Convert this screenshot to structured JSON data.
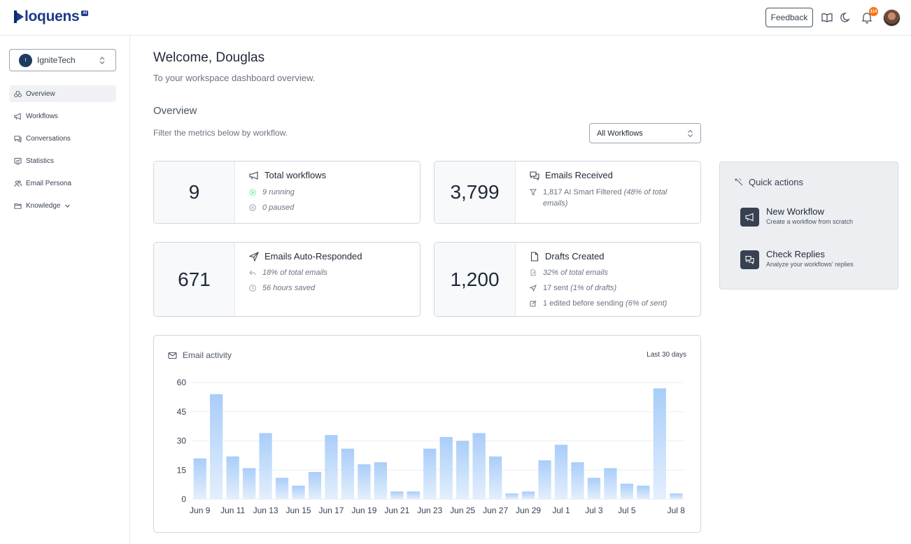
{
  "header": {
    "brand": "loquens",
    "brand_badge": "AI",
    "feedback_label": "Feedback",
    "notification_count": "114"
  },
  "sidebar": {
    "workspace": {
      "initial": "I",
      "name": "IgniteTech"
    },
    "items": [
      {
        "label": "Overview",
        "icon": "binoculars-icon",
        "active": true
      },
      {
        "label": "Workflows",
        "icon": "megaphone-icon"
      },
      {
        "label": "Conversations",
        "icon": "chat-icon"
      },
      {
        "label": "Statistics",
        "icon": "chart-icon"
      },
      {
        "label": "Email Persona",
        "icon": "users-icon"
      },
      {
        "label": "Knowledge",
        "icon": "folder-icon"
      }
    ]
  },
  "main": {
    "welcome": "Welcome, Douglas",
    "subtitle": "To your workspace dashboard overview.",
    "overview_heading": "Overview",
    "filter_text": "Filter the metrics below by workflow.",
    "workflow_select": "All Workflows"
  },
  "cards": {
    "total_workflows": {
      "value": "9",
      "title": "Total workflows",
      "running": "9 running",
      "paused": "0 paused"
    },
    "emails_received": {
      "value": "3,799",
      "title": "Emails Received",
      "filtered": "1,817 AI Smart Filtered",
      "filtered_pct": "(48% of total",
      "filtered_pct2": "emails)"
    },
    "auto_responded": {
      "value": "671",
      "title": "Emails Auto-Responded",
      "pct": "18% of total emails",
      "saved": "56 hours saved"
    },
    "drafts": {
      "value": "1,200",
      "title": "Drafts Created",
      "pct": "32% of total emails",
      "sent": "17 sent",
      "sent_pct": "(1% of drafts)",
      "edited": "1 edited before sending",
      "edited_pct": "(6% of sent)"
    }
  },
  "quick_actions": {
    "title": "Quick actions",
    "items": [
      {
        "name": "New Workflow",
        "desc": "Create a workflow from scratch"
      },
      {
        "name": "Check Replies",
        "desc": "Analyze your workflows' replies"
      }
    ]
  },
  "chart": {
    "title": "Email activity",
    "range": "Last 30 days"
  },
  "chart_data": {
    "type": "bar",
    "title": "Email activity",
    "categories": [
      "Jun 9",
      "Jun 10",
      "Jun 11",
      "Jun 12",
      "Jun 13",
      "Jun 14",
      "Jun 15",
      "Jun 16",
      "Jun 17",
      "Jun 18",
      "Jun 19",
      "Jun 20",
      "Jun 21",
      "Jun 22",
      "Jun 23",
      "Jun 24",
      "Jun 25",
      "Jun 26",
      "Jun 27",
      "Jun 28",
      "Jun 29",
      "Jun 30",
      "Jul 1",
      "Jul 2",
      "Jul 3",
      "Jul 4",
      "Jul 5",
      "Jul 6",
      "Jul 7",
      "Jul 8"
    ],
    "values": [
      21,
      54,
      22,
      16,
      34,
      11,
      7,
      14,
      33,
      26,
      18,
      19,
      4,
      4,
      26,
      32,
      30,
      34,
      22,
      3,
      4,
      20,
      28,
      19,
      11,
      16,
      8,
      7,
      57,
      3
    ],
    "tick_labels": [
      "Jun 9",
      "Jun 11",
      "Jun 13",
      "Jun 15",
      "Jun 17",
      "Jun 19",
      "Jun 21",
      "Jun 23",
      "Jun 25",
      "Jun 27",
      "Jun 29",
      "Jul 1",
      "Jul 3",
      "Jul 5",
      "Jul 8"
    ],
    "y_ticks": [
      0,
      15,
      30,
      45,
      60
    ],
    "ylim": [
      0,
      60
    ],
    "grid": true,
    "bar_color": "#bfdbfe"
  }
}
